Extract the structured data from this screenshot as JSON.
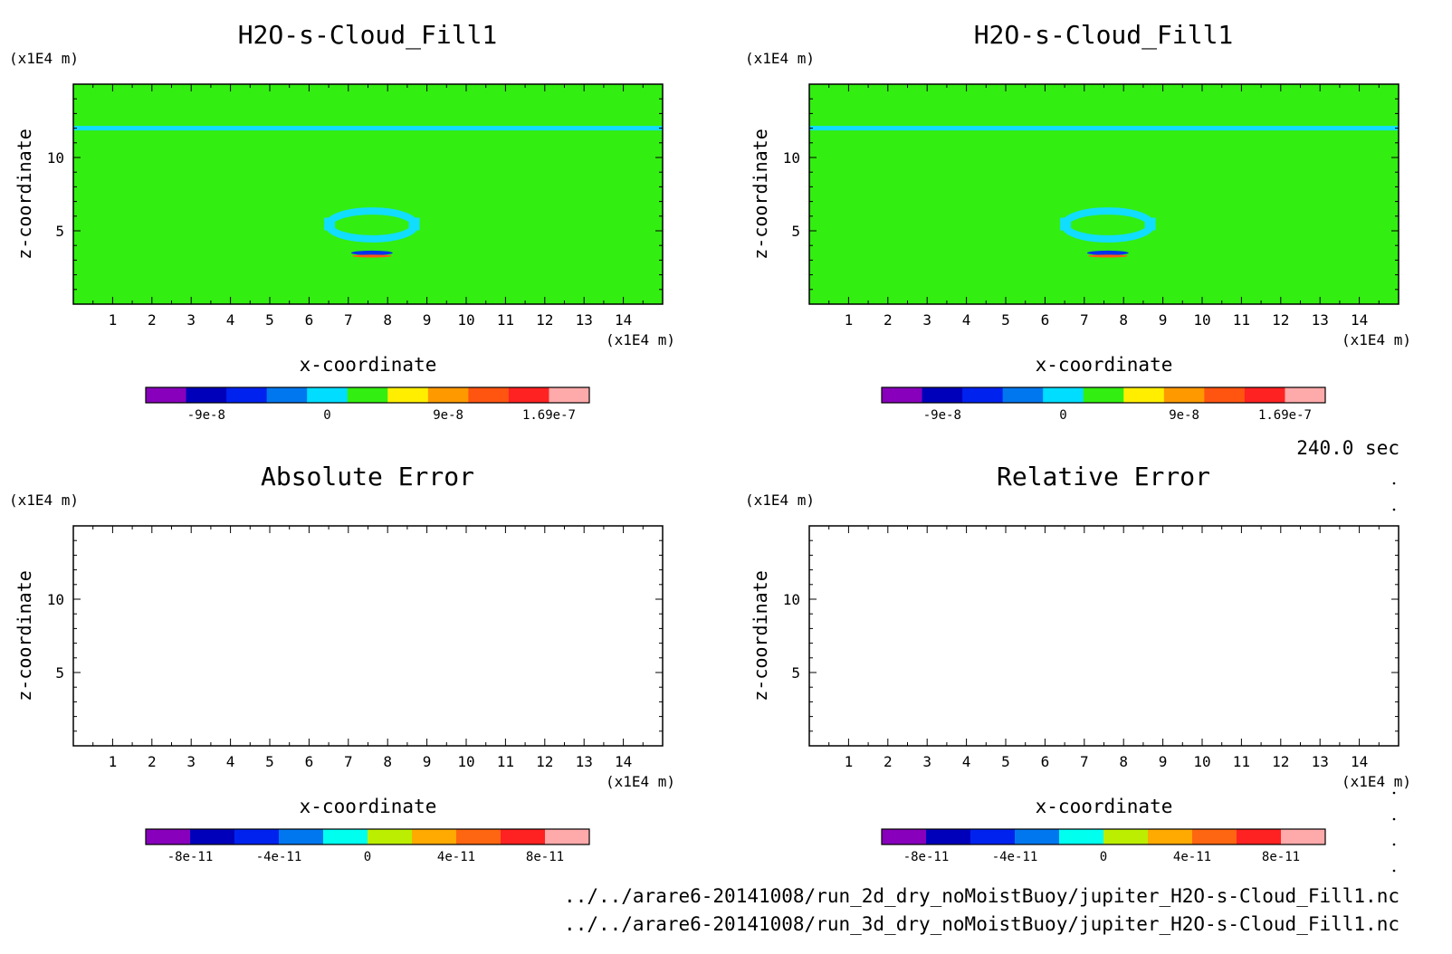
{
  "time_label": "240.0 sec",
  "files": [
    "../../arare6-20141008/run_2d_dry_noMoistBuoy/jupiter_H2O-s-Cloud_Fill1.nc",
    "../../arare6-20141008/run_3d_dry_noMoistBuoy/jupiter_H2O-s-Cloud_Fill1.nc"
  ],
  "colors": {
    "field_background": "#33ee11",
    "field_contour": "#11ddff",
    "anomaly_low": "#0033ee",
    "anomaly_high": "#ff5a10",
    "frame": "#000000"
  },
  "chart_data": [
    {
      "type": "heatmap",
      "title": "H2O-s-Cloud_Fill1",
      "xlabel": "x-coordinate",
      "ylabel": "z-coordinate",
      "x_unit": "(x1E4 m)",
      "y_unit": "(x1E4 m)",
      "xlim": [
        0,
        15
      ],
      "ylim": [
        0,
        15
      ],
      "x_ticks": [
        1,
        2,
        3,
        4,
        5,
        6,
        7,
        8,
        9,
        10,
        11,
        12,
        13,
        14
      ],
      "y_ticks": [
        5,
        10
      ],
      "field": "uniform",
      "features": {
        "band_z": 12,
        "ring_center": [
          7.6,
          5.4
        ],
        "ring_radius": [
          1.1,
          0.95
        ],
        "dipole_center": [
          7.6,
          3.4
        ]
      },
      "colorbar": {
        "colors": [
          "#8800bb",
          "#0000bb",
          "#0022ee",
          "#0077ee",
          "#00ddff",
          "#33ee11",
          "#ffee00",
          "#ff9900",
          "#ff5511",
          "#ff2222",
          "#ffaaaa"
        ],
        "tick_labels": [
          "-9e-8",
          "0",
          "9e-8",
          "1.69e-7"
        ],
        "tick_positions": [
          1.5,
          4.5,
          7.5,
          10
        ]
      }
    },
    {
      "type": "heatmap",
      "title": "H2O-s-Cloud_Fill1",
      "xlabel": "x-coordinate",
      "ylabel": "z-coordinate",
      "x_unit": "(x1E4 m)",
      "y_unit": "(x1E4 m)",
      "xlim": [
        0,
        15
      ],
      "ylim": [
        0,
        15
      ],
      "x_ticks": [
        1,
        2,
        3,
        4,
        5,
        6,
        7,
        8,
        9,
        10,
        11,
        12,
        13,
        14
      ],
      "y_ticks": [
        5,
        10
      ],
      "field": "uniform",
      "features": {
        "band_z": 12,
        "ring_center": [
          7.6,
          5.4
        ],
        "ring_radius": [
          1.1,
          0.95
        ],
        "dipole_center": [
          7.6,
          3.4
        ]
      },
      "colorbar": {
        "colors": [
          "#8800bb",
          "#0000bb",
          "#0022ee",
          "#0077ee",
          "#00ddff",
          "#33ee11",
          "#ffee00",
          "#ff9900",
          "#ff5511",
          "#ff2222",
          "#ffaaaa"
        ],
        "tick_labels": [
          "-9e-8",
          "0",
          "9e-8",
          "1.69e-7"
        ],
        "tick_positions": [
          1.5,
          4.5,
          7.5,
          10
        ]
      }
    },
    {
      "type": "heatmap",
      "title": "Absolute Error",
      "xlabel": "x-coordinate",
      "ylabel": "z-coordinate",
      "x_unit": "(x1E4 m)",
      "y_unit": "(x1E4 m)",
      "xlim": [
        0,
        15
      ],
      "ylim": [
        0,
        15
      ],
      "x_ticks": [
        1,
        2,
        3,
        4,
        5,
        6,
        7,
        8,
        9,
        10,
        11,
        12,
        13,
        14
      ],
      "y_ticks": [
        5,
        10
      ],
      "field": "empty",
      "colorbar": {
        "colors": [
          "#8800bb",
          "#0000bb",
          "#0022ee",
          "#0077ee",
          "#00ffee",
          "#bbee00",
          "#ffaa00",
          "#ff6611",
          "#ff2222",
          "#ffaaaa"
        ],
        "tick_labels": [
          "-8e-11",
          "-4e-11",
          "0",
          "4e-11",
          "8e-11"
        ],
        "tick_positions": [
          1,
          3,
          5,
          7,
          9
        ]
      }
    },
    {
      "type": "heatmap",
      "title": "Relative Error",
      "xlabel": "x-coordinate",
      "ylabel": "z-coordinate",
      "x_unit": "(x1E4 m)",
      "y_unit": "(x1E4 m)",
      "xlim": [
        0,
        15
      ],
      "ylim": [
        0,
        15
      ],
      "x_ticks": [
        1,
        2,
        3,
        4,
        5,
        6,
        7,
        8,
        9,
        10,
        11,
        12,
        13,
        14
      ],
      "y_ticks": [
        5,
        10
      ],
      "field": "empty",
      "colorbar": {
        "colors": [
          "#8800bb",
          "#0000bb",
          "#0022ee",
          "#0077ee",
          "#00ffee",
          "#bbee00",
          "#ffaa00",
          "#ff6611",
          "#ff2222",
          "#ffaaaa"
        ],
        "tick_labels": [
          "-8e-11",
          "-4e-11",
          "0",
          "4e-11",
          "8e-11"
        ],
        "tick_positions": [
          1,
          3,
          5,
          7,
          9
        ]
      }
    }
  ]
}
